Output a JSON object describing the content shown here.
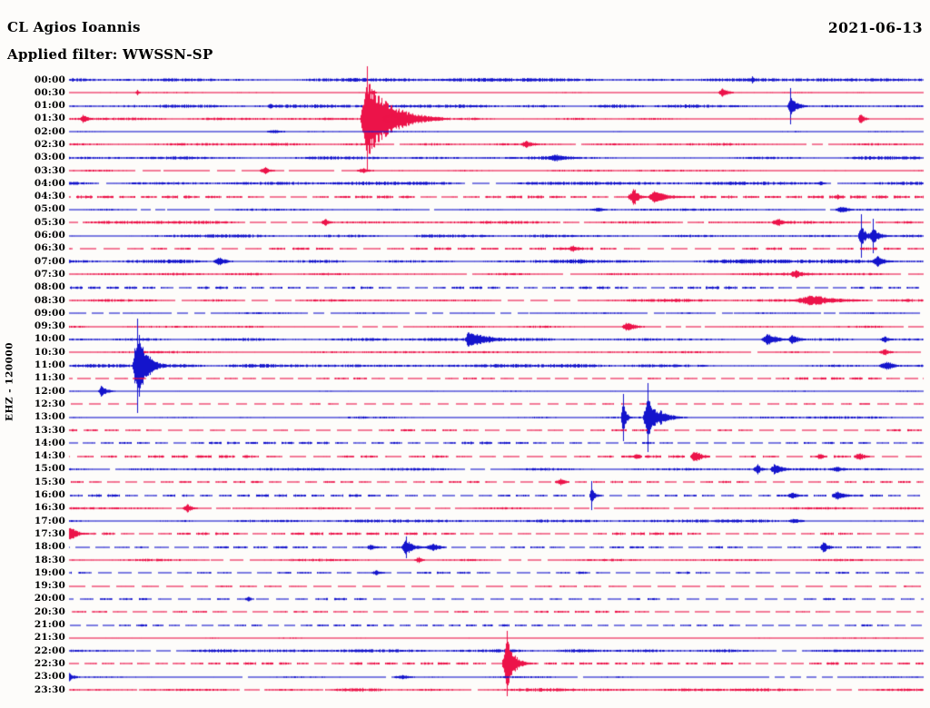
{
  "header": {
    "station": "CL Agios Ioannis",
    "date": "2021-06-13",
    "filter_label": "Applied filter: WWSSN-SP"
  },
  "y_axis_label": "EHZ - 120000",
  "colors": {
    "trace_blue": "#1414cc",
    "trace_red": "#ec1349",
    "background": "#fdfcfa",
    "text": "#000000"
  },
  "chart_data": {
    "type": "line",
    "subtype": "helicorder-dayplot",
    "title": "CL Agios Ioannis",
    "date": "2021-06-13",
    "filter": "WWSSN-SP",
    "channel_scale_label": "EHZ - 120000",
    "row_interval_minutes": 30,
    "legend_position": "none",
    "grid": false,
    "trace_color_alternation": [
      "#1414cc",
      "#ec1349"
    ],
    "note": "48 half-hour trace rows; e = events as [x_fraction_of_row, amplitude_px, onset_width_px, coda_decay_px, spike_line_halflen_px]; a = background noise amplitude; d = data-gap dashiness (0 none, 0.3 sparse gaps, 0.5 partial, 1 dashed)",
    "rows": [
      {
        "t": "00:00",
        "c": "b",
        "a": 1.3,
        "d": 0,
        "e": [
          [
            0.8,
            4,
            3,
            4,
            0
          ]
        ]
      },
      {
        "t": "00:30",
        "c": "r",
        "a": 0.55,
        "d": 0,
        "e": [
          [
            0.08,
            3,
            3,
            3,
            0
          ],
          [
            0.355,
            3,
            4,
            3,
            0
          ],
          [
            0.765,
            6,
            5,
            6,
            0
          ]
        ]
      },
      {
        "t": "01:00",
        "c": "b",
        "a": 1.3,
        "d": 0,
        "e": [
          [
            0.235,
            4,
            3,
            4,
            0
          ],
          [
            0.845,
            10,
            4,
            8,
            20
          ]
        ]
      },
      {
        "t": "01:30",
        "c": "r",
        "a": 1.0,
        "d": 0,
        "e": [
          [
            0.016,
            6,
            4,
            5,
            0
          ],
          [
            0.349,
            45,
            8,
            26,
            58
          ],
          [
            0.378,
            5,
            12,
            8,
            0
          ],
          [
            0.927,
            7,
            3,
            4,
            0
          ]
        ]
      },
      {
        "t": "02:00",
        "c": "b",
        "a": 0.55,
        "d": 0,
        "e": [
          [
            0.24,
            2,
            14,
            12,
            0
          ]
        ]
      },
      {
        "t": "02:30",
        "c": "r",
        "a": 1.1,
        "d": 0.3,
        "e": [
          [
            0.535,
            4,
            8,
            10,
            0
          ]
        ]
      },
      {
        "t": "03:00",
        "c": "b",
        "a": 1.2,
        "d": 0,
        "e": [
          [
            0.57,
            4,
            16,
            16,
            0
          ]
        ]
      },
      {
        "t": "03:30",
        "c": "r",
        "a": 0.8,
        "d": 0.3,
        "e": [
          [
            0.23,
            4,
            8,
            6,
            0
          ],
          [
            0.345,
            3,
            10,
            8,
            0
          ]
        ]
      },
      {
        "t": "04:00",
        "c": "b",
        "a": 1.3,
        "d": 0.3,
        "e": [
          [
            0.88,
            3,
            5,
            4,
            0
          ]
        ]
      },
      {
        "t": "04:30",
        "c": "r",
        "a": 1.2,
        "d": 1,
        "e": [
          [
            0.662,
            10,
            8,
            5,
            0
          ],
          [
            0.684,
            7,
            6,
            16,
            0
          ],
          [
            0.9,
            3,
            5,
            4,
            0
          ]
        ]
      },
      {
        "t": "05:00",
        "c": "b",
        "a": 0.8,
        "d": 0.3,
        "e": [
          [
            0.62,
            2.5,
            12,
            8,
            0
          ],
          [
            0.905,
            4,
            10,
            8,
            0
          ]
        ]
      },
      {
        "t": "05:30",
        "c": "r",
        "a": 1.1,
        "d": 0.5,
        "e": [
          [
            0.3,
            4,
            6,
            5,
            0
          ],
          [
            0.83,
            5,
            8,
            8,
            0
          ]
        ]
      },
      {
        "t": "06:00",
        "c": "b",
        "a": 1.2,
        "d": 0,
        "e": [
          [
            0.928,
            12,
            4,
            6,
            24
          ],
          [
            0.942,
            9,
            5,
            8,
            19
          ]
        ]
      },
      {
        "t": "06:30",
        "c": "r",
        "a": 1.0,
        "d": 1,
        "e": [
          [
            0.59,
            4,
            8,
            6,
            0
          ]
        ]
      },
      {
        "t": "07:00",
        "c": "b",
        "a": 1.5,
        "d": 0,
        "e": [
          [
            0.175,
            5,
            8,
            8,
            0
          ],
          [
            0.6,
            3,
            12,
            8,
            0
          ],
          [
            0.947,
            6,
            8,
            8,
            0
          ]
        ]
      },
      {
        "t": "07:30",
        "c": "r",
        "a": 1.0,
        "d": 0.3,
        "e": [
          [
            0.85,
            5,
            8,
            10,
            0
          ]
        ]
      },
      {
        "t": "08:00",
        "c": "b",
        "a": 1.1,
        "d": 1,
        "e": []
      },
      {
        "t": "08:30",
        "c": "r",
        "a": 1.2,
        "d": 0.3,
        "e": [
          [
            0.87,
            6,
            25,
            30,
            0
          ]
        ]
      },
      {
        "t": "09:00",
        "c": "b",
        "a": 0.7,
        "d": 0.5,
        "e": []
      },
      {
        "t": "09:30",
        "c": "r",
        "a": 0.9,
        "d": 0.3,
        "e": [
          [
            0.652,
            6,
            5,
            10,
            0
          ]
        ]
      },
      {
        "t": "10:00",
        "c": "b",
        "a": 1.1,
        "d": 0,
        "e": [
          [
            0.468,
            11,
            5,
            20,
            0
          ],
          [
            0.818,
            8,
            8,
            10,
            0
          ],
          [
            0.847,
            6,
            6,
            8,
            0
          ],
          [
            0.955,
            4,
            6,
            6,
            0
          ]
        ]
      },
      {
        "t": "10:30",
        "c": "r",
        "a": 0.9,
        "d": 0.3,
        "e": [
          [
            0.955,
            4,
            8,
            6,
            0
          ]
        ]
      },
      {
        "t": "11:00",
        "c": "b",
        "a": 1.4,
        "d": 0,
        "e": [
          [
            0.0795,
            42,
            6,
            10,
            52
          ],
          [
            0.957,
            6,
            10,
            8,
            0
          ]
        ]
      },
      {
        "t": "11:30",
        "c": "r",
        "a": 0.8,
        "d": 1,
        "e": []
      },
      {
        "t": "12:00",
        "c": "b",
        "a": 0.6,
        "d": 0,
        "e": [
          [
            0.037,
            6,
            4,
            7,
            0
          ]
        ]
      },
      {
        "t": "12:30",
        "c": "r",
        "a": 0.6,
        "d": 1,
        "e": []
      },
      {
        "t": "13:00",
        "c": "b",
        "a": 0.9,
        "d": 0,
        "e": [
          [
            0.649,
            20,
            3,
            3,
            26
          ],
          [
            0.678,
            26,
            6,
            8,
            38
          ],
          [
            0.693,
            8,
            5,
            12,
            0
          ]
        ]
      },
      {
        "t": "13:30",
        "c": "r",
        "a": 0.8,
        "d": 1,
        "e": []
      },
      {
        "t": "14:00",
        "c": "b",
        "a": 0.9,
        "d": 1,
        "e": []
      },
      {
        "t": "14:30",
        "c": "r",
        "a": 1.0,
        "d": 1,
        "e": [
          [
            0.665,
            4,
            6,
            4,
            0
          ],
          [
            0.733,
            7,
            6,
            8,
            0
          ],
          [
            0.88,
            4,
            6,
            4,
            0
          ],
          [
            0.925,
            5,
            8,
            6,
            0
          ]
        ]
      },
      {
        "t": "15:00",
        "c": "b",
        "a": 1.0,
        "d": 0.3,
        "e": [
          [
            0.806,
            6,
            6,
            4,
            0
          ],
          [
            0.827,
            7,
            6,
            8,
            0
          ],
          [
            0.9,
            3,
            14,
            10,
            0
          ]
        ]
      },
      {
        "t": "15:30",
        "c": "r",
        "a": 0.8,
        "d": 1,
        "e": [
          [
            0.575,
            4,
            8,
            6,
            0
          ]
        ]
      },
      {
        "t": "16:00",
        "c": "b",
        "a": 1.0,
        "d": 1,
        "e": [
          [
            0.612,
            10,
            3,
            4,
            16
          ],
          [
            0.848,
            4,
            8,
            6,
            0
          ],
          [
            0.9,
            6,
            8,
            8,
            0
          ]
        ]
      },
      {
        "t": "16:30",
        "c": "r",
        "a": 0.9,
        "d": 0.5,
        "e": [
          [
            0.138,
            5,
            6,
            6,
            0
          ]
        ]
      },
      {
        "t": "17:00",
        "c": "b",
        "a": 1.1,
        "d": 0,
        "e": [
          [
            0.85,
            3,
            10,
            8,
            0
          ]
        ]
      },
      {
        "t": "17:30",
        "c": "r",
        "a": 1.0,
        "d": 1,
        "e": [
          [
            0.0,
            9,
            5,
            8,
            0
          ]
        ]
      },
      {
        "t": "18:00",
        "c": "b",
        "a": 0.8,
        "d": 1,
        "e": [
          [
            0.353,
            4,
            6,
            6,
            0
          ],
          [
            0.395,
            9,
            6,
            8,
            12
          ],
          [
            0.425,
            5,
            10,
            8,
            0
          ],
          [
            0.883,
            7,
            4,
            6,
            0
          ]
        ]
      },
      {
        "t": "18:30",
        "c": "r",
        "a": 0.9,
        "d": 0.3,
        "e": [
          [
            0.41,
            4,
            6,
            4,
            0
          ]
        ]
      },
      {
        "t": "19:00",
        "c": "b",
        "a": 0.9,
        "d": 1,
        "e": [
          [
            0.36,
            3,
            8,
            6,
            0
          ]
        ]
      },
      {
        "t": "19:30",
        "c": "r",
        "a": 0.55,
        "d": 1,
        "e": []
      },
      {
        "t": "20:00",
        "c": "b",
        "a": 0.8,
        "d": 1,
        "e": [
          [
            0.21,
            3,
            5,
            4,
            0
          ]
        ]
      },
      {
        "t": "20:30",
        "c": "r",
        "a": 0.8,
        "d": 1,
        "e": []
      },
      {
        "t": "21:00",
        "c": "b",
        "a": 0.8,
        "d": 1,
        "e": []
      },
      {
        "t": "21:30",
        "c": "r",
        "a": 0.55,
        "d": 0.3,
        "e": []
      },
      {
        "t": "22:00",
        "c": "b",
        "a": 1.3,
        "d": 0.3,
        "e": []
      },
      {
        "t": "22:30",
        "c": "r",
        "a": 0.9,
        "d": 1,
        "e": [
          [
            0.513,
            28,
            6,
            8,
            36
          ]
        ]
      },
      {
        "t": "23:00",
        "c": "b",
        "a": 0.7,
        "d": 0.3,
        "e": [
          [
            0.0,
            5,
            5,
            6,
            0
          ],
          [
            0.39,
            2.5,
            14,
            10,
            0
          ]
        ]
      },
      {
        "t": "23:30",
        "c": "r",
        "a": 1.4,
        "d": 0.3,
        "e": []
      }
    ]
  }
}
